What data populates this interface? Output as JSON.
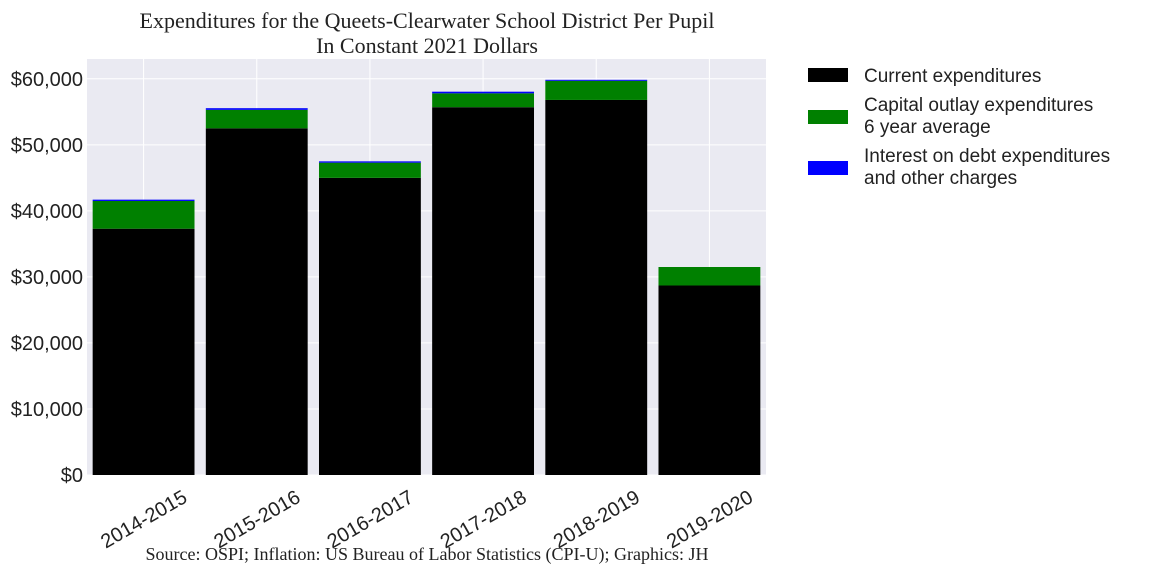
{
  "chart_data": {
    "type": "bar",
    "stacked": true,
    "title": [
      "Expenditures for the Queets-Clearwater School District Per Pupil",
      "In Constant 2021 Dollars"
    ],
    "source": "Source: OSPI; Inflation: US Bureau of Labor Statistics (CPI-U); Graphics: JH",
    "categories": [
      "2014-2015",
      "2015-2016",
      "2016-2017",
      "2017-2018",
      "2018-2019",
      "2019-2020"
    ],
    "series": [
      {
        "name": [
          "Current expenditures"
        ],
        "color": "#000000",
        "values": [
          37300,
          52500,
          45000,
          55700,
          56800,
          28700
        ]
      },
      {
        "name": [
          "Capital outlay expenditures",
          "6 year average"
        ],
        "color": "#008000",
        "values": [
          4200,
          2800,
          2300,
          2100,
          2900,
          2800
        ]
      },
      {
        "name": [
          "Interest on debt expenditures",
          "and other charges"
        ],
        "color": "#0000ff",
        "values": [
          200,
          250,
          200,
          250,
          150,
          0
        ]
      }
    ],
    "ylim": [
      0,
      63000
    ],
    "yticks": [
      0,
      10000,
      20000,
      30000,
      40000,
      50000,
      60000
    ],
    "ytick_labels": [
      "$0",
      "$10,000",
      "$20,000",
      "$30,000",
      "$40,000",
      "$50,000",
      "$60,000"
    ],
    "grid": true,
    "legend_position": "outside-right-top",
    "background_color": "#eaeaf2"
  }
}
